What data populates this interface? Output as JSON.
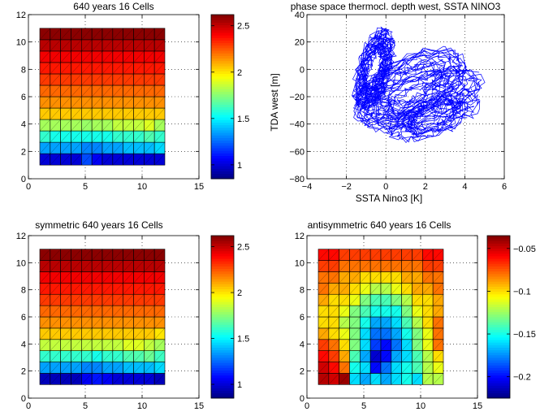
{
  "chart_data": [
    {
      "type": "heatmap",
      "title": "640 years 16 Cells",
      "xlim": [
        0,
        15
      ],
      "ylim": [
        0,
        12
      ],
      "xticks": [
        "0",
        "5",
        "10",
        "15"
      ],
      "yticks": [
        "0",
        "2",
        "4",
        "6",
        "8",
        "10",
        "12"
      ],
      "colorbar": {
        "range": [
          0.85,
          2.62
        ],
        "ticks": [
          "1",
          "1.5",
          "2",
          "2.5"
        ],
        "tick_values": [
          1,
          1.5,
          2,
          2.5
        ]
      },
      "x": [
        1,
        12
      ],
      "y": [
        1,
        11
      ],
      "values": [
        [
          1.0,
          1.0,
          1.0,
          1.0,
          1.2,
          1.05,
          1.0,
          1.0,
          1.0,
          1.0,
          1.0,
          1.0
        ],
        [
          1.35,
          1.35,
          1.35,
          1.35,
          1.3,
          1.3,
          1.35,
          1.35,
          1.4,
          1.4,
          1.4,
          1.45
        ],
        [
          1.6,
          1.55,
          1.55,
          1.55,
          1.55,
          1.55,
          1.55,
          1.6,
          1.6,
          1.6,
          1.65,
          1.6
        ],
        [
          1.8,
          1.8,
          1.8,
          1.8,
          1.78,
          1.8,
          1.8,
          1.85,
          1.85,
          1.85,
          1.9,
          1.8
        ],
        [
          2.05,
          2.05,
          2.05,
          2.05,
          2.05,
          2.05,
          2.05,
          2.05,
          2.05,
          2.05,
          2.05,
          2.05
        ],
        [
          2.15,
          2.15,
          2.15,
          2.15,
          2.15,
          2.15,
          2.15,
          2.15,
          2.15,
          2.15,
          2.15,
          2.15
        ],
        [
          2.22,
          2.22,
          2.22,
          2.22,
          2.22,
          2.22,
          2.22,
          2.22,
          2.22,
          2.22,
          2.22,
          2.22
        ],
        [
          2.3,
          2.3,
          2.3,
          2.3,
          2.3,
          2.3,
          2.3,
          2.3,
          2.3,
          2.3,
          2.3,
          2.3
        ],
        [
          2.36,
          2.36,
          2.36,
          2.36,
          2.36,
          2.36,
          2.36,
          2.36,
          2.36,
          2.36,
          2.36,
          2.36
        ],
        [
          2.42,
          2.42,
          2.42,
          2.42,
          2.42,
          2.42,
          2.42,
          2.42,
          2.42,
          2.42,
          2.42,
          2.42
        ],
        [
          2.52,
          2.52,
          2.52,
          2.52,
          2.52,
          2.52,
          2.52,
          2.52,
          2.52,
          2.52,
          2.52,
          2.52
        ],
        [
          2.6,
          2.6,
          2.6,
          2.6,
          2.6,
          2.6,
          2.6,
          2.6,
          2.6,
          2.6,
          2.6,
          2.6
        ]
      ]
    },
    {
      "type": "line",
      "title": "phase space thermocl. depth west, SSTA NINO3",
      "xlabel": "SSTA Nino3 [K]",
      "ylabel": "TDA west [m]",
      "xlim": [
        -4,
        6
      ],
      "ylim": [
        -80,
        40
      ],
      "xticks": [
        "−4",
        "−2",
        "0",
        "2",
        "4",
        "6"
      ],
      "xtick_values": [
        -4,
        -2,
        0,
        2,
        4,
        6
      ],
      "yticks": [
        "−80",
        "−60",
        "−40",
        "−20",
        "0",
        "20",
        "40"
      ],
      "ytick_values": [
        -80,
        -60,
        -40,
        -20,
        0,
        20,
        40
      ],
      "series_color": "#0000ff",
      "loops": [
        {
          "cx": 1.2,
          "cy": -12,
          "rx": 2.8,
          "ry": 26,
          "turns": 16
        },
        {
          "cx": 1.8,
          "cy": -22,
          "rx": 3.0,
          "ry": 22,
          "turns": 12
        },
        {
          "cx": -0.6,
          "cy": 0,
          "rx": 0.9,
          "ry": 28,
          "turns": 20
        },
        {
          "cx": 2.4,
          "cy": -34,
          "rx": 2.2,
          "ry": 18,
          "turns": 12
        }
      ]
    },
    {
      "type": "heatmap",
      "title": "symmetric 640 years 16 Cells",
      "xlim": [
        0,
        15
      ],
      "ylim": [
        0,
        12
      ],
      "xticks": [
        "0",
        "5",
        "10",
        "15"
      ],
      "yticks": [
        "0",
        "2",
        "4",
        "6",
        "8",
        "10",
        "12"
      ],
      "colorbar": {
        "range": [
          0.85,
          2.62
        ],
        "ticks": [
          "1",
          "1.5",
          "2",
          "2.5"
        ],
        "tick_values": [
          1,
          1.5,
          2,
          2.5
        ]
      },
      "x": [
        1,
        12
      ],
      "y": [
        1,
        11
      ],
      "values": [
        [
          0.95,
          0.95,
          0.95,
          0.95,
          1.05,
          1.1,
          1.05,
          1.0,
          1.0,
          1.0,
          1.0,
          0.95
        ],
        [
          1.35,
          1.35,
          1.35,
          1.35,
          1.3,
          1.3,
          1.35,
          1.35,
          1.4,
          1.4,
          1.4,
          1.45
        ],
        [
          1.6,
          1.6,
          1.6,
          1.6,
          1.6,
          1.55,
          1.6,
          1.6,
          1.65,
          1.65,
          1.7,
          1.62
        ],
        [
          1.85,
          1.85,
          1.85,
          1.85,
          1.85,
          1.85,
          1.85,
          1.85,
          1.9,
          1.9,
          1.85,
          1.8
        ],
        [
          2.05,
          2.05,
          2.05,
          2.05,
          2.05,
          2.05,
          2.05,
          2.05,
          2.05,
          2.05,
          2.05,
          2.0
        ],
        [
          2.15,
          2.15,
          2.15,
          2.15,
          2.15,
          2.15,
          2.15,
          2.15,
          2.15,
          2.15,
          2.15,
          2.15
        ],
        [
          2.22,
          2.22,
          2.22,
          2.22,
          2.22,
          2.22,
          2.22,
          2.22,
          2.22,
          2.22,
          2.22,
          2.22
        ],
        [
          2.3,
          2.3,
          2.3,
          2.3,
          2.3,
          2.3,
          2.3,
          2.3,
          2.3,
          2.3,
          2.3,
          2.3
        ],
        [
          2.36,
          2.36,
          2.36,
          2.36,
          2.36,
          2.36,
          2.36,
          2.36,
          2.36,
          2.36,
          2.36,
          2.36
        ],
        [
          2.42,
          2.42,
          2.42,
          2.42,
          2.42,
          2.42,
          2.42,
          2.42,
          2.42,
          2.42,
          2.42,
          2.42
        ],
        [
          2.52,
          2.52,
          2.52,
          2.52,
          2.52,
          2.52,
          2.52,
          2.52,
          2.52,
          2.52,
          2.52,
          2.52
        ],
        [
          2.6,
          2.6,
          2.6,
          2.6,
          2.6,
          2.6,
          2.6,
          2.6,
          2.6,
          2.6,
          2.6,
          2.6
        ]
      ]
    },
    {
      "type": "heatmap",
      "title": "antisymmetric 640 years 16 Cells",
      "xlim": [
        0,
        15
      ],
      "ylim": [
        0,
        12
      ],
      "xticks": [
        "0",
        "5",
        "10",
        "15"
      ],
      "yticks": [
        "0",
        "2",
        "4",
        "6",
        "8",
        "10",
        "12"
      ],
      "colorbar": {
        "range": [
          -0.225,
          -0.035
        ],
        "ticks": [
          "−0.05",
          "−0.1",
          "−0.15",
          "−0.2"
        ],
        "tick_values": [
          -0.05,
          -0.1,
          -0.15,
          -0.2
        ]
      },
      "x": [
        1,
        12
      ],
      "y": [
        1,
        11
      ],
      "values": [
        [
          -0.045,
          -0.05,
          -0.04,
          -0.16,
          -0.17,
          -0.16,
          -0.17,
          -0.16,
          -0.15,
          -0.16,
          -0.12,
          -0.12
        ],
        [
          -0.05,
          -0.06,
          -0.08,
          -0.15,
          -0.16,
          -0.2,
          -0.18,
          -0.16,
          -0.15,
          -0.14,
          -0.12,
          -0.11
        ],
        [
          -0.06,
          -0.07,
          -0.09,
          -0.14,
          -0.17,
          -0.21,
          -0.2,
          -0.17,
          -0.16,
          -0.14,
          -0.12,
          -0.1
        ],
        [
          -0.07,
          -0.08,
          -0.1,
          -0.13,
          -0.16,
          -0.19,
          -0.2,
          -0.18,
          -0.16,
          -0.13,
          -0.11,
          -0.08
        ],
        [
          -0.09,
          -0.1,
          -0.11,
          -0.13,
          -0.16,
          -0.18,
          -0.18,
          -0.17,
          -0.15,
          -0.13,
          -0.11,
          -0.08
        ],
        [
          -0.1,
          -0.1,
          -0.12,
          -0.13,
          -0.15,
          -0.17,
          -0.17,
          -0.16,
          -0.14,
          -0.12,
          -0.1,
          -0.08
        ],
        [
          -0.1,
          -0.1,
          -0.11,
          -0.13,
          -0.14,
          -0.15,
          -0.15,
          -0.15,
          -0.13,
          -0.11,
          -0.1,
          -0.09
        ],
        [
          -0.09,
          -0.1,
          -0.1,
          -0.11,
          -0.13,
          -0.14,
          -0.14,
          -0.13,
          -0.12,
          -0.1,
          -0.1,
          -0.09
        ],
        [
          -0.08,
          -0.09,
          -0.09,
          -0.1,
          -0.11,
          -0.12,
          -0.12,
          -0.11,
          -0.1,
          -0.09,
          -0.09,
          -0.08
        ],
        [
          -0.08,
          -0.08,
          -0.09,
          -0.09,
          -0.1,
          -0.1,
          -0.1,
          -0.1,
          -0.09,
          -0.09,
          -0.08,
          -0.08
        ],
        [
          -0.07,
          -0.07,
          -0.08,
          -0.08,
          -0.08,
          -0.08,
          -0.08,
          -0.08,
          -0.08,
          -0.08,
          -0.07,
          -0.07
        ],
        [
          -0.06,
          -0.06,
          -0.07,
          -0.07,
          -0.07,
          -0.07,
          -0.07,
          -0.07,
          -0.07,
          -0.07,
          -0.06,
          -0.06
        ]
      ]
    }
  ]
}
